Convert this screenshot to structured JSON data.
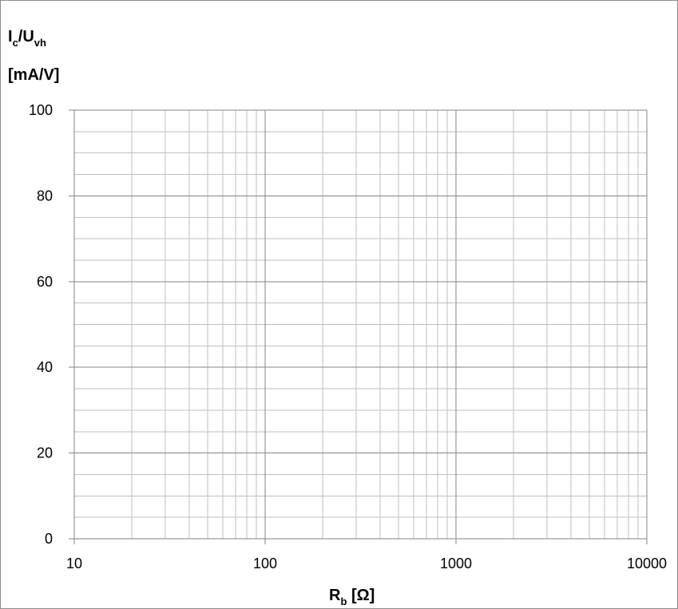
{
  "chart_data": {
    "type": "scatter",
    "title": "",
    "x_scale": "log",
    "xlim": [
      10,
      10000
    ],
    "ylim": [
      0,
      100
    ],
    "x_ticks": [
      "10",
      "100",
      "1000",
      "10000"
    ],
    "y_ticks": [
      "0",
      "20",
      "40",
      "60",
      "80",
      "100"
    ],
    "y_minor_step": 5,
    "grid": true,
    "series": [],
    "ylabel": {
      "line1": {
        "main1": "I",
        "sub1": "c",
        "sep": "/U",
        "sub2": "vh"
      },
      "line2": "[mA/V]"
    },
    "xlabel": {
      "main": "R",
      "sub": "b",
      "unit": " [Ω]"
    }
  },
  "colors": {
    "grid_major": "#868686",
    "grid_minor": "#bfbfbf",
    "axis": "#868686",
    "text": "#000000"
  }
}
